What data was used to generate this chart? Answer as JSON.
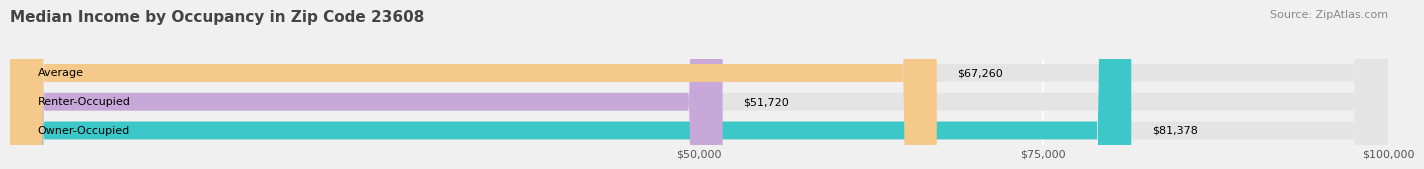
{
  "title": "Median Income by Occupancy in Zip Code 23608",
  "source": "Source: ZipAtlas.com",
  "categories": [
    "Owner-Occupied",
    "Renter-Occupied",
    "Average"
  ],
  "values": [
    81378,
    51720,
    67260
  ],
  "bar_colors": [
    "#3cc8c8",
    "#c8a8d8",
    "#f5c98a"
  ],
  "bar_labels": [
    "$81,378",
    "$51,720",
    "$67,260"
  ],
  "xlim": [
    0,
    100000
  ],
  "xticks": [
    50000,
    75000,
    100000
  ],
  "xtick_labels": [
    "$50,000",
    "$75,000",
    "$100,000"
  ],
  "background_color": "#f0f0f0",
  "bar_bg_color": "#e4e4e4",
  "title_fontsize": 11,
  "source_fontsize": 8,
  "label_fontsize": 8,
  "tick_fontsize": 8
}
